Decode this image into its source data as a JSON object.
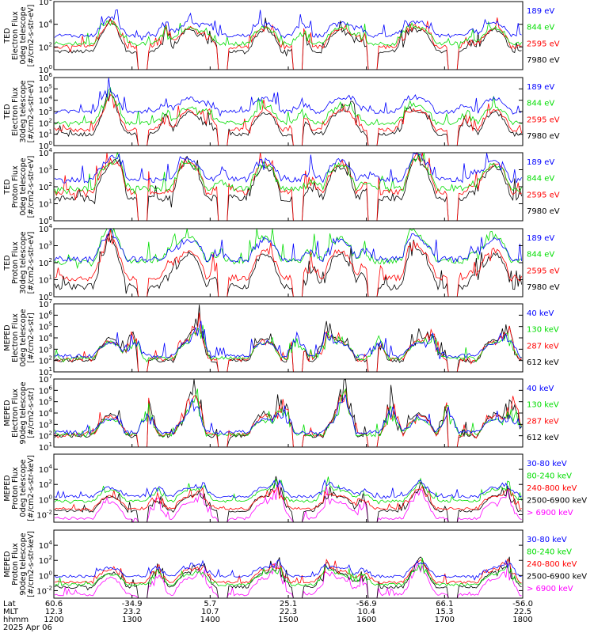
{
  "chart_data": [
    {
      "type": "line",
      "ylabel": [
        "TED",
        "Electron Flux",
        "0deg telescope",
        "[#/cm2-s-str-eV]"
      ],
      "ylog": [
        0,
        6
      ],
      "tick_labels": [
        "10^0",
        "10^2",
        "10^4",
        "10^6"
      ],
      "tick_exps": [
        0,
        2,
        4,
        6
      ],
      "series": [
        {
          "name": "7980 eV",
          "color": "#000000",
          "level": 1.6
        },
        {
          "name": "2595 eV",
          "color": "#ff0000",
          "level": 2.0
        },
        {
          "name": "844 eV",
          "color": "#00dd00",
          "level": 2.3
        },
        {
          "name": "189 eV",
          "color": "#0000ff",
          "level": 3.0
        }
      ],
      "bursts": [
        [
          0.12,
          1.0
        ],
        [
          0.24,
          2.0
        ],
        [
          0.33,
          1.8
        ],
        [
          0.53,
          2.0
        ],
        [
          0.65,
          1.4
        ],
        [
          0.75,
          1.5
        ],
        [
          0.89,
          1.0
        ]
      ]
    },
    {
      "type": "line",
      "ylabel": [
        "TED",
        "Electron Flux",
        "30deg telescope",
        "[#/cm2-s-str-eV]"
      ],
      "ylog": [
        0,
        6
      ],
      "tick_labels": [
        "10^0",
        "10^1",
        "10^2",
        "10^3",
        "10^4",
        "10^5",
        "10^6"
      ],
      "tick_exps": [
        0,
        1,
        2,
        3,
        4,
        5,
        6
      ],
      "series": [
        {
          "name": "7980 eV",
          "color": "#000000",
          "level": 1.0
        },
        {
          "name": "2595 eV",
          "color": "#ff0000",
          "level": 1.4
        },
        {
          "name": "844 eV",
          "color": "#00dd00",
          "level": 2.0
        },
        {
          "name": "189 eV",
          "color": "#0000ff",
          "level": 3.0
        }
      ],
      "bursts": [
        [
          0.12,
          1.8
        ],
        [
          0.24,
          1.6
        ],
        [
          0.33,
          1.9
        ],
        [
          0.53,
          1.7
        ],
        [
          0.64,
          1.5
        ],
        [
          0.75,
          1.6
        ],
        [
          0.88,
          1.4
        ]
      ]
    },
    {
      "type": "line",
      "ylabel": [
        "TED",
        "Proton Flux",
        "0deg telescope",
        "[#/cm2-s-str-eV]"
      ],
      "ylog": [
        0,
        4
      ],
      "tick_labels": [
        "10^0",
        "10^1",
        "10^2",
        "10^3",
        "10^4"
      ],
      "tick_exps": [
        0,
        1,
        2,
        3,
        4
      ],
      "series": [
        {
          "name": "7980 eV",
          "color": "#000000",
          "level": 1.3
        },
        {
          "name": "2595 eV",
          "color": "#ff0000",
          "level": 1.7
        },
        {
          "name": "844 eV",
          "color": "#00dd00",
          "level": 1.9
        },
        {
          "name": "189 eV",
          "color": "#0000ff",
          "level": 2.4
        }
      ],
      "bursts": [
        [
          0.14,
          1.0
        ],
        [
          0.27,
          0.8
        ],
        [
          0.36,
          0.9
        ],
        [
          0.55,
          0.9
        ],
        [
          0.67,
          0.8
        ],
        [
          0.77,
          0.9
        ],
        [
          0.9,
          0.8
        ]
      ]
    },
    {
      "type": "line",
      "ylabel": [
        "TED",
        "Proton Flux",
        "30deg telescope",
        "[#/cm2-s-str-eV]"
      ],
      "ylog": [
        0,
        4
      ],
      "tick_labels": [
        "10^0",
        "10^1",
        "10^2",
        "10^3",
        "10^4"
      ],
      "tick_exps": [
        0,
        1,
        2,
        3,
        4
      ],
      "series": [
        {
          "name": "7980 eV",
          "color": "#000000",
          "level": 0.6
        },
        {
          "name": "2595 eV",
          "color": "#ff0000",
          "level": 1.1
        },
        {
          "name": "844 eV",
          "color": "#00dd00",
          "level": 2.1
        },
        {
          "name": "189 eV",
          "color": "#0000ff",
          "level": 2.2
        }
      ],
      "bursts": [
        [
          0.12,
          1.2
        ],
        [
          0.25,
          1.2
        ],
        [
          0.35,
          1.0
        ],
        [
          0.55,
          1.1
        ],
        [
          0.66,
          1.0
        ],
        [
          0.76,
          1.2
        ],
        [
          0.9,
          0.9
        ]
      ]
    },
    {
      "type": "line",
      "ylabel": [
        "MEPED",
        "Electron Flux",
        "0deg telescope",
        "[#/cm2-s-str]"
      ],
      "ylog": [
        1,
        7
      ],
      "tick_labels": [
        "10^1",
        "10^2",
        "10^3",
        "10^4",
        "10^5",
        "10^6",
        "10^7"
      ],
      "tick_exps": [
        1,
        2,
        3,
        4,
        5,
        6,
        7
      ],
      "series": [
        {
          "name": "612 keV",
          "color": "#000000",
          "level": 2.0
        },
        {
          "name": "287 keV",
          "color": "#ff0000",
          "level": 2.1
        },
        {
          "name": "130 keV",
          "color": "#00dd00",
          "level": 2.2
        },
        {
          "name": "40 keV",
          "color": "#0000ff",
          "level": 2.4
        }
      ],
      "bursts": [
        [
          0.17,
          3.0
        ],
        [
          0.31,
          3.2
        ],
        [
          0.52,
          3.4
        ],
        [
          0.58,
          2.6
        ],
        [
          0.69,
          2.5
        ],
        [
          0.81,
          2.2
        ],
        [
          0.97,
          2.6
        ]
      ]
    },
    {
      "type": "line",
      "ylabel": [
        "MEPED",
        "Electron Flux",
        "90deg telescope",
        "[#/cm2-s-str]"
      ],
      "ylog": [
        1,
        7
      ],
      "tick_labels": [
        "10^1",
        "10^2",
        "10^3",
        "10^4",
        "10^5",
        "10^6",
        "10^7"
      ],
      "tick_exps": [
        1,
        2,
        3,
        4,
        5,
        6,
        7
      ],
      "series": [
        {
          "name": "612 keV",
          "color": "#000000",
          "level": 2.0
        },
        {
          "name": "287 keV",
          "color": "#ff0000",
          "level": 2.1
        },
        {
          "name": "130 keV",
          "color": "#00dd00",
          "level": 2.1
        },
        {
          "name": "40 keV",
          "color": "#0000ff",
          "level": 2.3
        }
      ],
      "bursts": [
        [
          0.2,
          3.6
        ],
        [
          0.3,
          3.4
        ],
        [
          0.49,
          3.8
        ],
        [
          0.62,
          3.6
        ],
        [
          0.72,
          3.7
        ],
        [
          0.84,
          3.6
        ],
        [
          0.98,
          3.5
        ]
      ]
    },
    {
      "type": "line",
      "ylabel": [
        "MEPED",
        "Proton Flux",
        "0deg telescope",
        "[#/cm2-s-str-keV]"
      ],
      "ylog": [
        -3,
        6
      ],
      "tick_labels": [
        "10^-2",
        "10^0",
        "10^2",
        "10^4"
      ],
      "tick_exps": [
        -2,
        0,
        2,
        4
      ],
      "series": [
        {
          "name": "> 6900 keV",
          "color": "#ff00ff",
          "level": -2.5
        },
        {
          "name": "2500-6900 keV",
          "color": "#000000",
          "level": -1.5
        },
        {
          "name": "240-800 keV",
          "color": "#ff0000",
          "level": -1.2
        },
        {
          "name": "80-240 keV",
          "color": "#00dd00",
          "level": -0.2
        },
        {
          "name": "30-80 keV",
          "color": "#0000ff",
          "level": 0.4
        }
      ],
      "bursts": [
        [
          0.22,
          3.2
        ],
        [
          0.32,
          2.6
        ],
        [
          0.48,
          3.8
        ],
        [
          0.58,
          2.8
        ],
        [
          0.66,
          2.4
        ],
        [
          0.78,
          2.0
        ],
        [
          0.97,
          3.4
        ]
      ]
    },
    {
      "type": "line",
      "ylabel": [
        "MEPED",
        "Proton Flux",
        "90deg telescope",
        "[#/cm2-s-str-keV]"
      ],
      "ylog": [
        -3,
        6
      ],
      "tick_labels": [
        "10^-2",
        "10^0",
        "10^2",
        "10^4"
      ],
      "tick_exps": [
        -2,
        0,
        2,
        4
      ],
      "series": [
        {
          "name": "> 6900 keV",
          "color": "#ff00ff",
          "level": -2.5
        },
        {
          "name": "2500-6900 keV",
          "color": "#000000",
          "level": -1.5
        },
        {
          "name": "240-800 keV",
          "color": "#ff0000",
          "level": -0.9
        },
        {
          "name": "80-240 keV",
          "color": "#00dd00",
          "level": -1.2
        },
        {
          "name": "30-80 keV",
          "color": "#0000ff",
          "level": -0.1
        }
      ],
      "bursts": [
        [
          0.22,
          3.4
        ],
        [
          0.32,
          2.8
        ],
        [
          0.48,
          3.6
        ],
        [
          0.58,
          3.0
        ],
        [
          0.66,
          2.4
        ],
        [
          0.78,
          2.4
        ],
        [
          0.97,
          3.6
        ]
      ]
    }
  ],
  "x_axis": {
    "type": "time",
    "row_labels": [
      "Lat",
      "MLT",
      "hhmm",
      "2025 Apr 06"
    ],
    "ticks": [
      {
        "hhmm": "1200",
        "lat": "60.6",
        "mlt": "12.3",
        "frac": 0.0
      },
      {
        "hhmm": "1300",
        "lat": "-34.9",
        "mlt": "23.2",
        "frac": 0.1667
      },
      {
        "hhmm": "1400",
        "lat": "5.7",
        "mlt": "10.7",
        "frac": 0.3333
      },
      {
        "hhmm": "1500",
        "lat": "25.1",
        "mlt": "22.3",
        "frac": 0.5
      },
      {
        "hhmm": "1600",
        "lat": "-56.9",
        "mlt": "10.4",
        "frac": 0.6667
      },
      {
        "hhmm": "1700",
        "lat": "66.1",
        "mlt": "15.3",
        "frac": 0.8333
      },
      {
        "hhmm": "1800",
        "lat": "-56.0",
        "mlt": "22.5",
        "frac": 1.0
      }
    ]
  },
  "pass_humps": [
    0.12,
    0.29,
    0.45,
    0.61,
    0.78,
    0.94
  ]
}
